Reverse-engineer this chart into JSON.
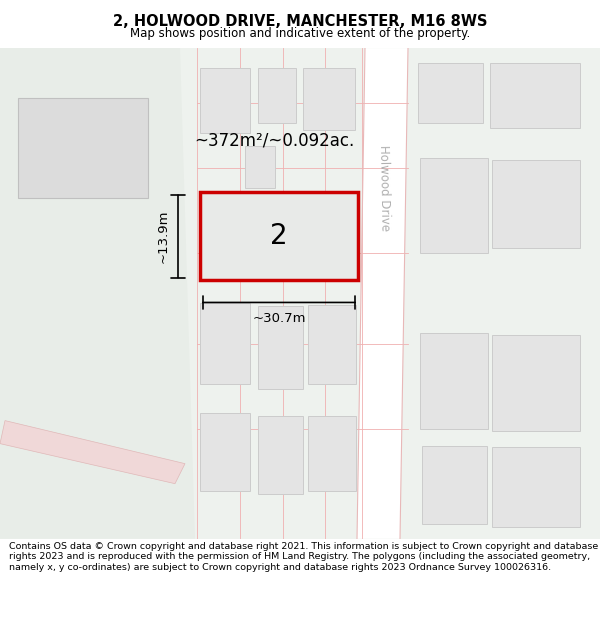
{
  "title": "2, HOLWOOD DRIVE, MANCHESTER, M16 8WS",
  "subtitle": "Map shows position and indicative extent of the property.",
  "footer": "Contains OS data © Crown copyright and database right 2021. This information is subject to Crown copyright and database rights 2023 and is reproduced with the permission of HM Land Registry. The polygons (including the associated geometry, namely x, y co-ordinates) are subject to Crown copyright and database rights 2023 Ordnance Survey 100026316.",
  "area_text": "~372m²/~0.092ac.",
  "width_text": "~30.7m",
  "height_text": "~13.9m",
  "number_text": "2",
  "road_label": "Holwood Drive",
  "map_bg": "#eef2ee",
  "road_fill": "#ffffff",
  "road_border": "#e8b8b8",
  "building_fill": "#e4e4e4",
  "building_border": "#cccccc",
  "highlight_fill": "#e8eae8",
  "highlight_border": "#cc0000",
  "figsize": [
    6.0,
    6.25
  ],
  "dpi": 100
}
